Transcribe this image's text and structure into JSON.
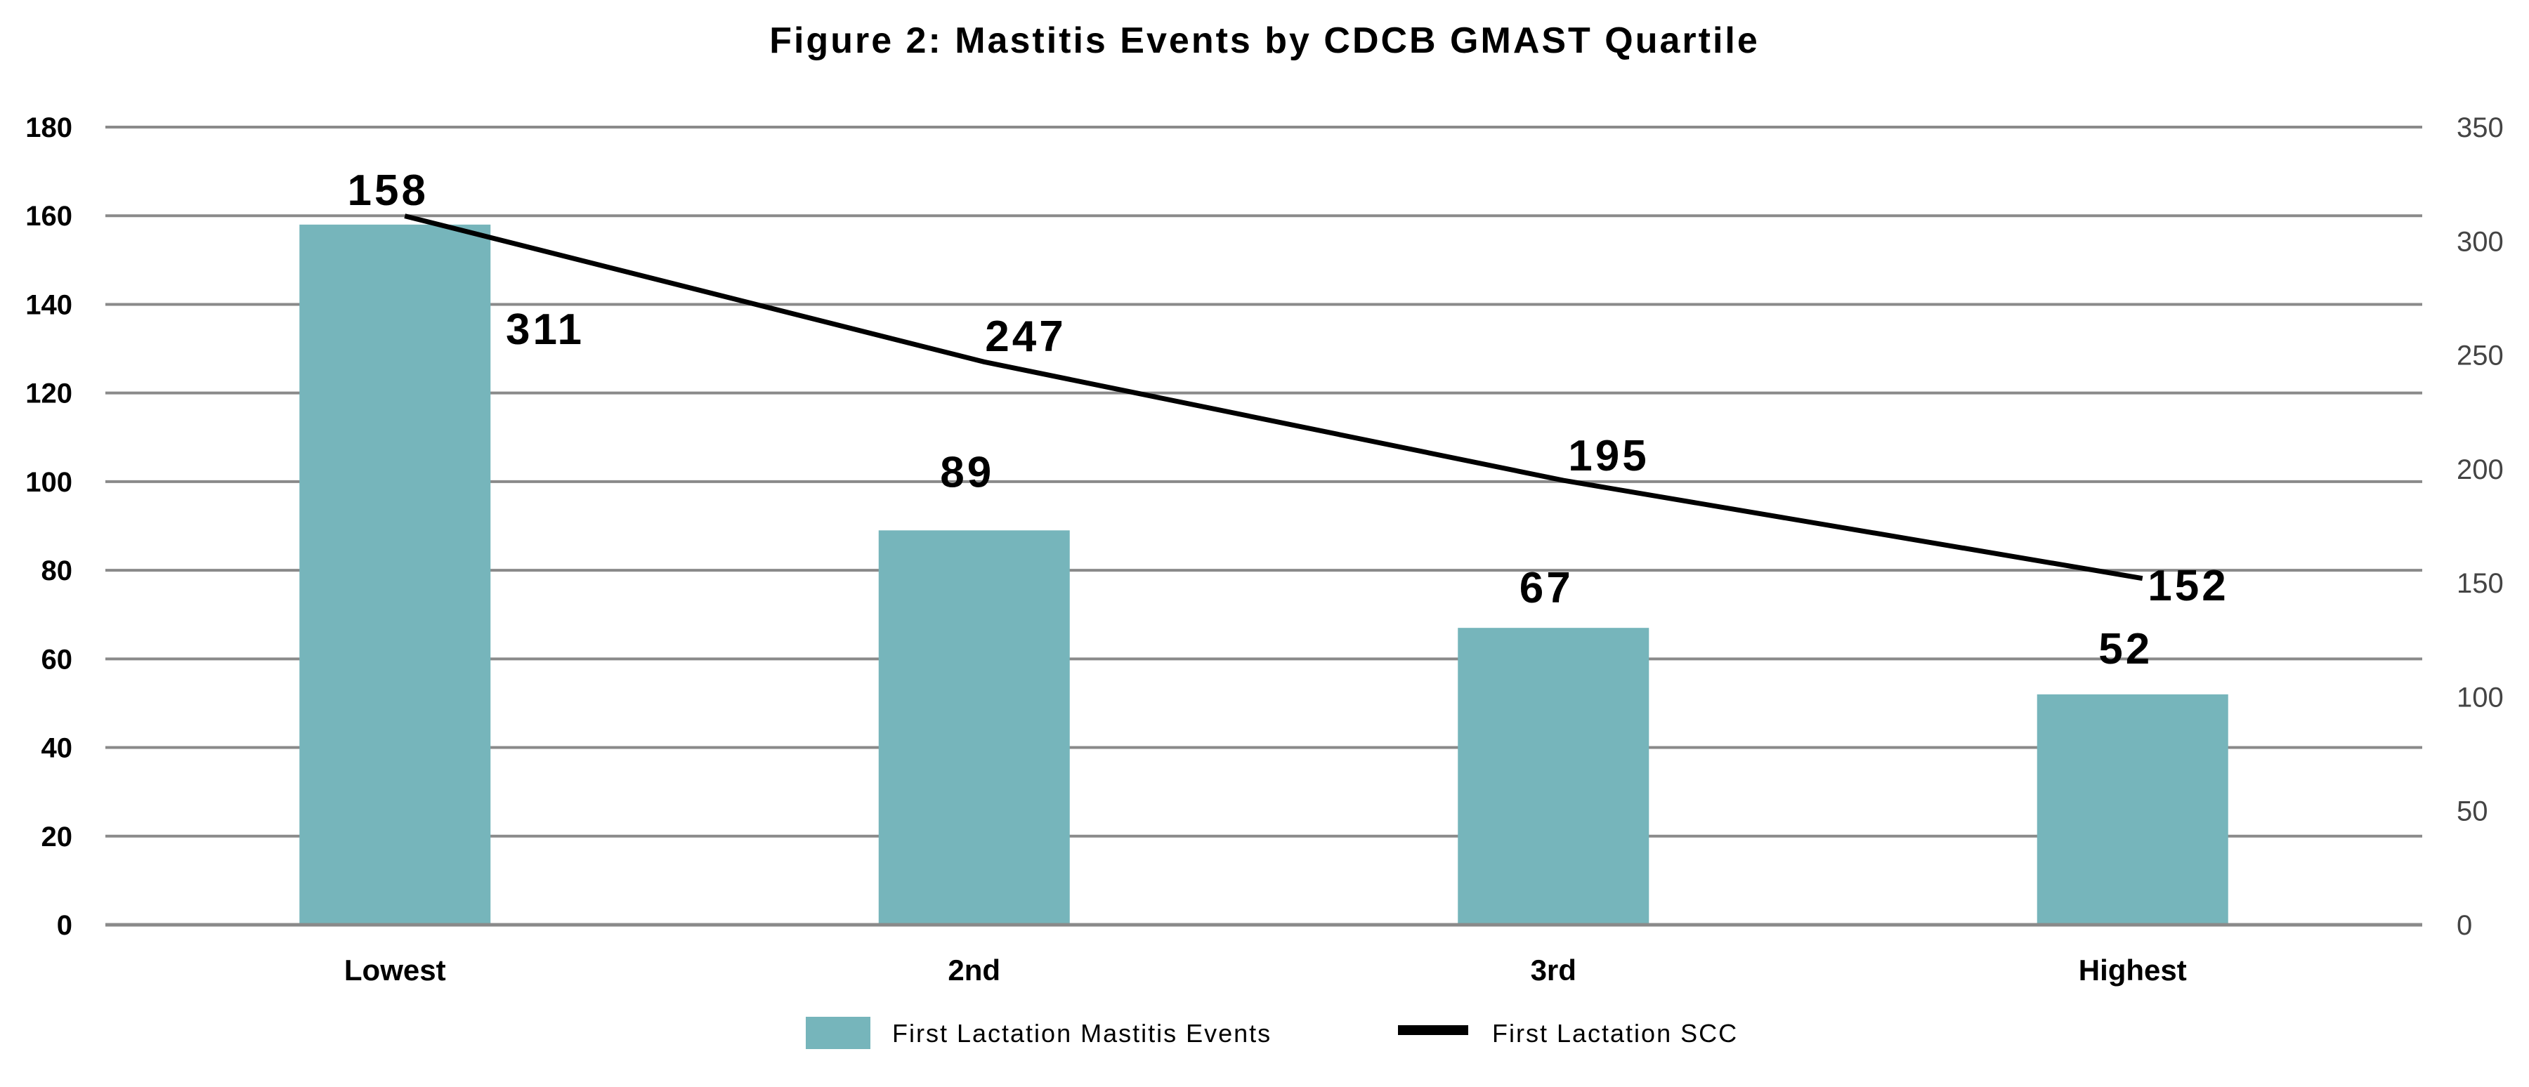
{
  "chart_data": {
    "type": "bar",
    "title": "Figure 2: Mastitis Events by CDCB GMAST Quartile",
    "categories": [
      "Lowest",
      "2nd",
      "3rd",
      "Highest"
    ],
    "series": [
      {
        "name": "First Lactation Mastitis Events",
        "type": "bar",
        "axis": "left",
        "color": "#76b5bb",
        "values": [
          158,
          89,
          67,
          52
        ],
        "labels": [
          "158",
          "89",
          "67",
          "52"
        ]
      },
      {
        "name": "First Lactation SCC",
        "type": "line",
        "axis": "right",
        "color": "#000000",
        "values": [
          311,
          247,
          195,
          152
        ],
        "labels": [
          "311",
          "247",
          "195",
          "152"
        ]
      }
    ],
    "ylim": [
      0,
      180
    ],
    "yticks": [
      "0",
      "20",
      "40",
      "60",
      "80",
      "100",
      "120",
      "140",
      "160",
      "180"
    ],
    "y2lim": [
      0,
      350
    ],
    "y2ticks": [
      "0",
      "50",
      "100",
      "150",
      "200",
      "250",
      "300",
      "350"
    ],
    "grid": true,
    "legend": "bottom"
  }
}
